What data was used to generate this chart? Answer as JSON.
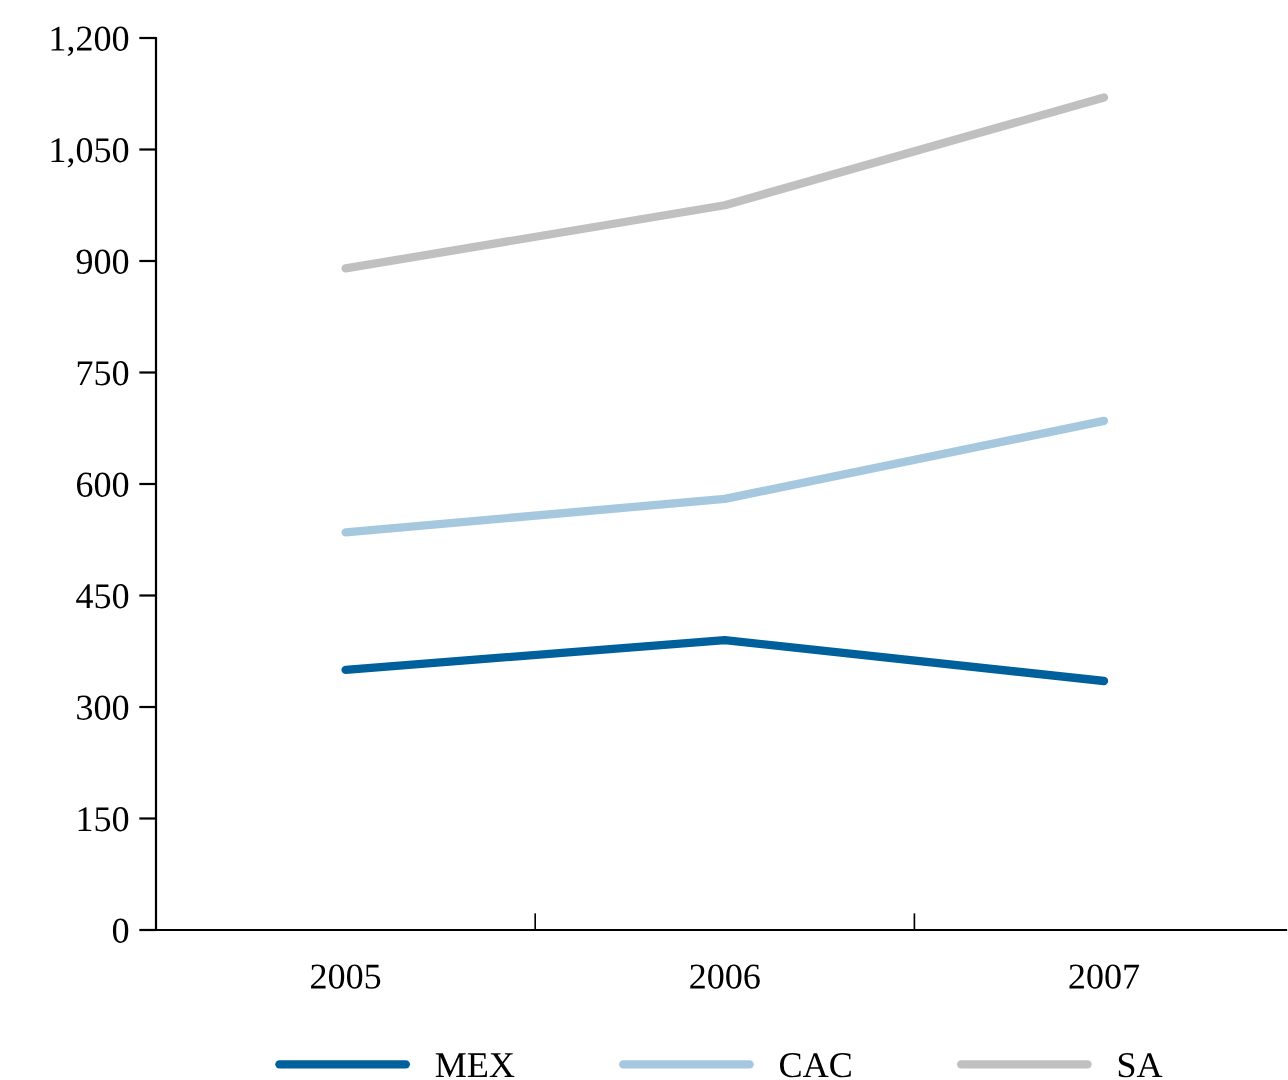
{
  "chart_data": {
    "type": "line",
    "categories": [
      "2005",
      "2006",
      "2007"
    ],
    "series": [
      {
        "name": "MEX",
        "color": "#00609c",
        "values": [
          350,
          390,
          335
        ]
      },
      {
        "name": "CAC",
        "color": "#a6c8de",
        "values": [
          535,
          580,
          685
        ]
      },
      {
        "name": "SA",
        "color": "#c0c0c0",
        "values": [
          890,
          975,
          1120
        ]
      }
    ],
    "ylim": [
      0,
      1200
    ],
    "yticks": [
      0,
      150,
      300,
      450,
      600,
      750,
      900,
      {
        "value": 1050,
        "label": "1,050"
      },
      {
        "value": 1200,
        "label": "1,200"
      }
    ],
    "grid": false,
    "legend": "bottom",
    "marker": "none",
    "line_style": "solid"
  }
}
